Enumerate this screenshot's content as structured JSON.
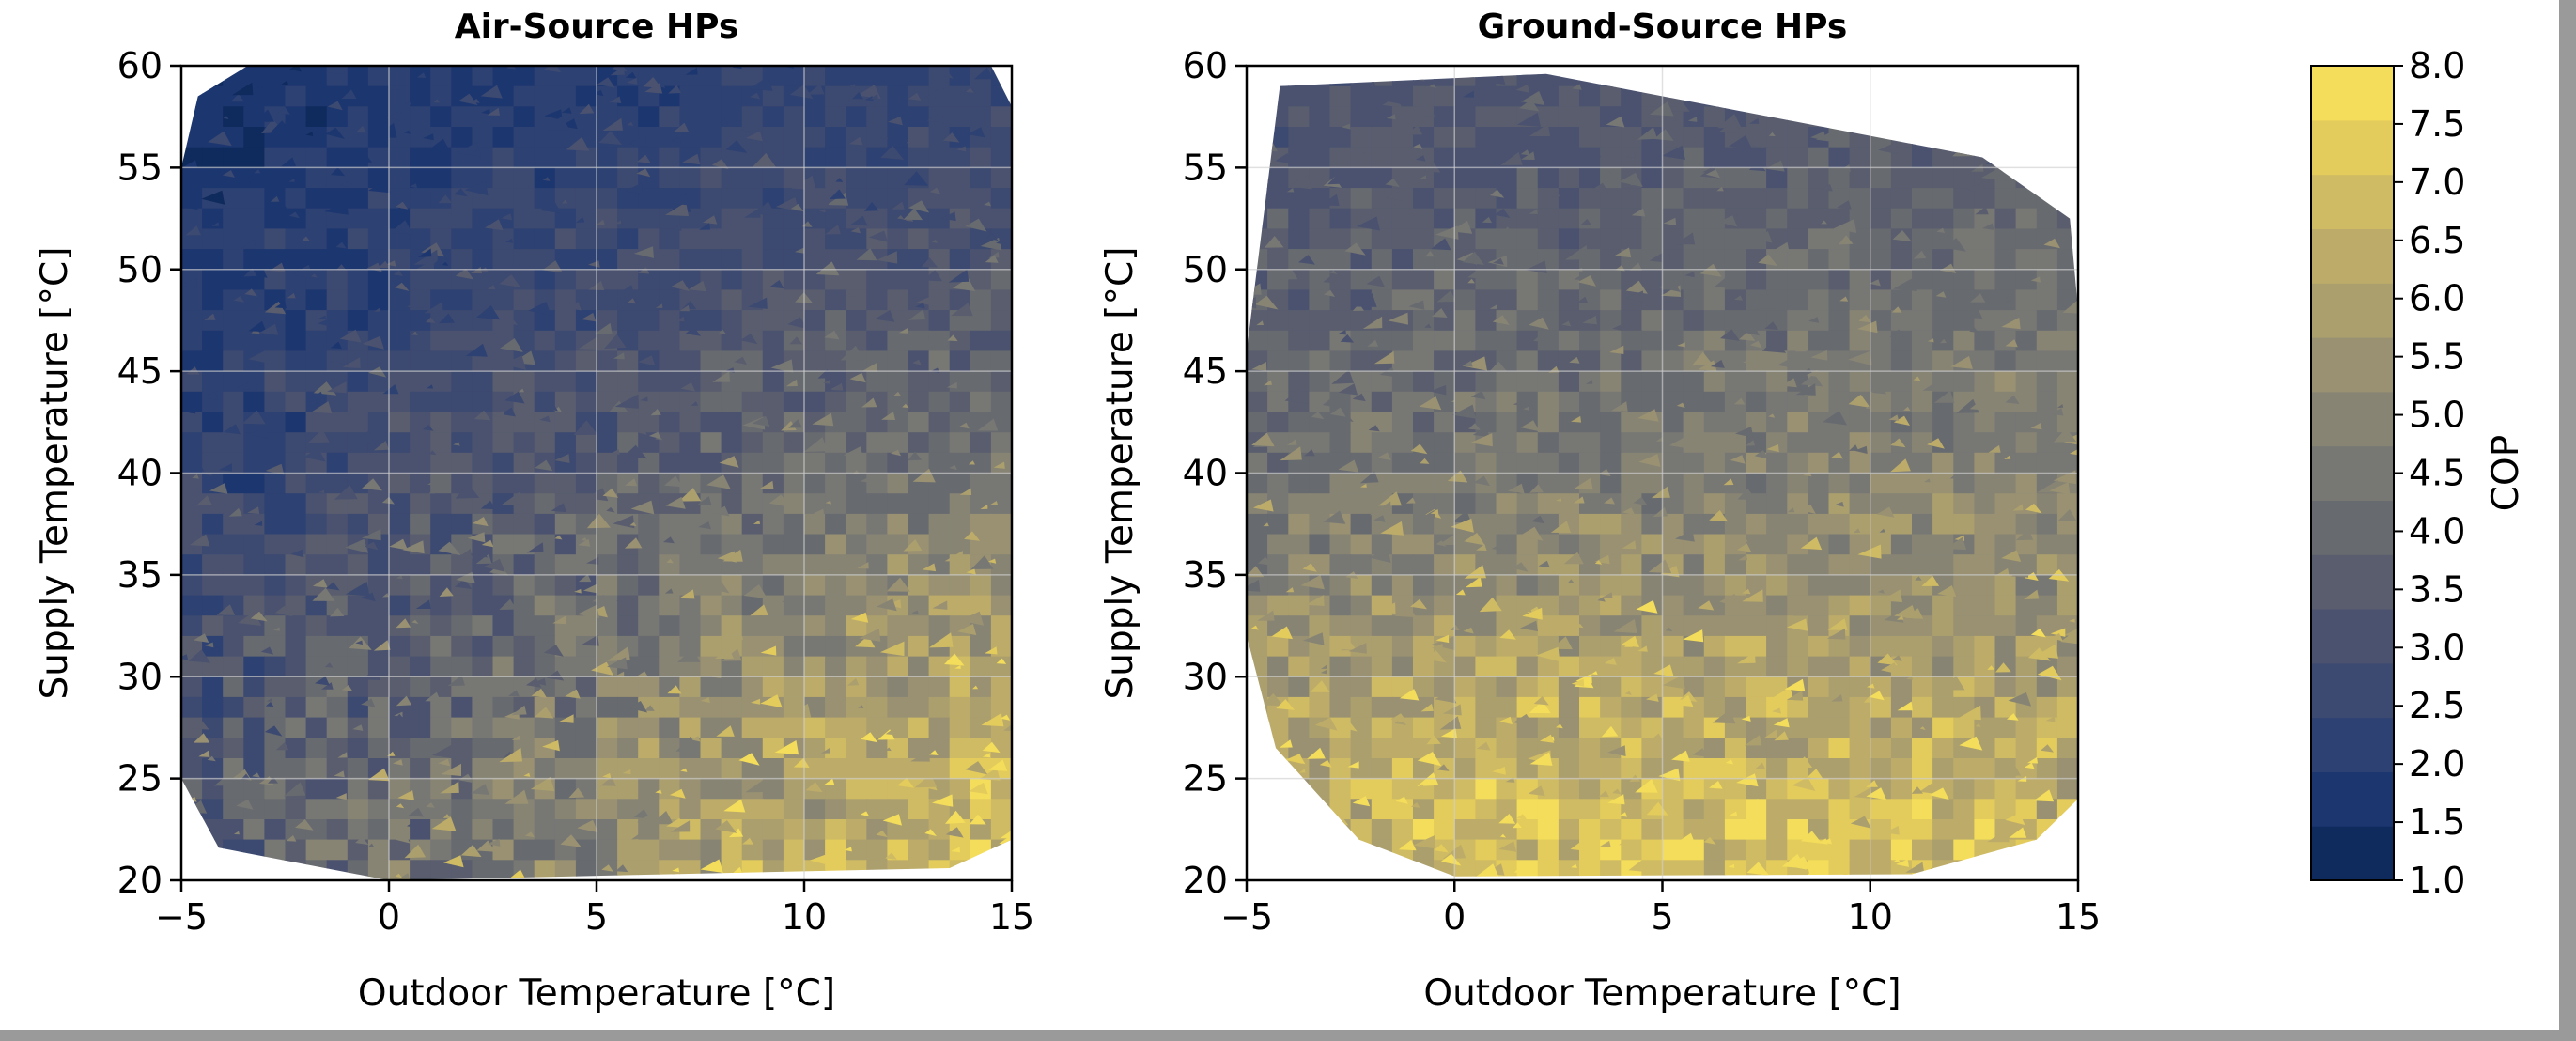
{
  "chart_data": [
    {
      "type": "heatmap",
      "title": "Air-Source HPs",
      "xlabel": "Outdoor Temperature [°C]",
      "ylabel": "Supply Temperature [°C]",
      "xlim": [
        -5,
        15
      ],
      "ylim": [
        20,
        60
      ],
      "xticks": [
        "−5",
        "0",
        "5",
        "10",
        "15"
      ],
      "yticks": [
        "20",
        "25",
        "30",
        "35",
        "40",
        "45",
        "50",
        "55",
        "60"
      ],
      "grid": true,
      "z_grid": {
        "x": [
          -5,
          0,
          5,
          10,
          15
        ],
        "y": [
          20,
          25,
          30,
          35,
          40,
          45,
          50,
          55,
          60
        ],
        "z": [
          [
            3.5,
            4.2,
            5.3,
            6.4,
            6.9
          ],
          [
            3.3,
            4.0,
            5.1,
            6.1,
            6.7
          ],
          [
            3.0,
            3.7,
            4.6,
            5.6,
            6.3
          ],
          [
            2.7,
            3.4,
            4.1,
            4.9,
            5.4
          ],
          [
            2.3,
            3.0,
            3.6,
            4.2,
            4.6
          ],
          [
            2.0,
            2.6,
            3.1,
            3.6,
            3.9
          ],
          [
            1.8,
            2.3,
            2.7,
            3.1,
            3.3
          ],
          [
            1.6,
            2.0,
            2.3,
            2.6,
            2.8
          ],
          [
            1.5,
            1.8,
            2.0,
            2.2,
            2.4
          ]
        ]
      }
    },
    {
      "type": "heatmap",
      "title": "Ground-Source HPs",
      "xlabel": "Outdoor Temperature [°C]",
      "ylabel": "Supply Temperature [°C]",
      "xlim": [
        -5,
        15
      ],
      "ylim": [
        20,
        60
      ],
      "xticks": [
        "−5",
        "0",
        "5",
        "10",
        "15"
      ],
      "yticks": [
        "20",
        "25",
        "30",
        "35",
        "40",
        "45",
        "50",
        "55",
        "60"
      ],
      "grid": true,
      "z_grid": {
        "x": [
          -5,
          0,
          5,
          10,
          15
        ],
        "y": [
          20,
          25,
          30,
          35,
          40,
          45,
          50,
          55,
          60
        ],
        "z": [
          [
            6.6,
            6.9,
            7.0,
            7.0,
            6.6
          ],
          [
            6.3,
            6.6,
            6.7,
            6.6,
            6.4
          ],
          [
            5.7,
            6.0,
            6.1,
            6.0,
            5.8
          ],
          [
            4.9,
            5.2,
            5.4,
            5.5,
            5.4
          ],
          [
            4.3,
            4.6,
            4.8,
            5.0,
            5.0
          ],
          [
            3.9,
            4.1,
            4.3,
            4.5,
            4.6
          ],
          [
            3.6,
            3.8,
            3.9,
            4.1,
            4.2
          ],
          [
            3.3,
            3.4,
            3.5,
            3.7,
            3.8
          ],
          [
            3.0,
            3.1,
            3.2,
            3.3,
            3.4
          ]
        ]
      }
    }
  ],
  "colorbar": {
    "label": "COP",
    "min": 1.0,
    "max": 8.0,
    "levels": [
      "1.0",
      "1.5",
      "2.0",
      "2.5",
      "3.0",
      "3.5",
      "4.0",
      "4.5",
      "5.0",
      "5.5",
      "6.0",
      "6.5",
      "7.0",
      "7.5",
      "8.0"
    ],
    "colors": [
      "#0f2a5c",
      "#1c3670",
      "#2d4172",
      "#3c4970",
      "#4a5270",
      "#595d6e",
      "#676a6f",
      "#777774",
      "#878474",
      "#999172",
      "#ab9f6e",
      "#bdac69",
      "#cfbb63",
      "#e3cb5c",
      "#f3dd5a"
    ]
  }
}
